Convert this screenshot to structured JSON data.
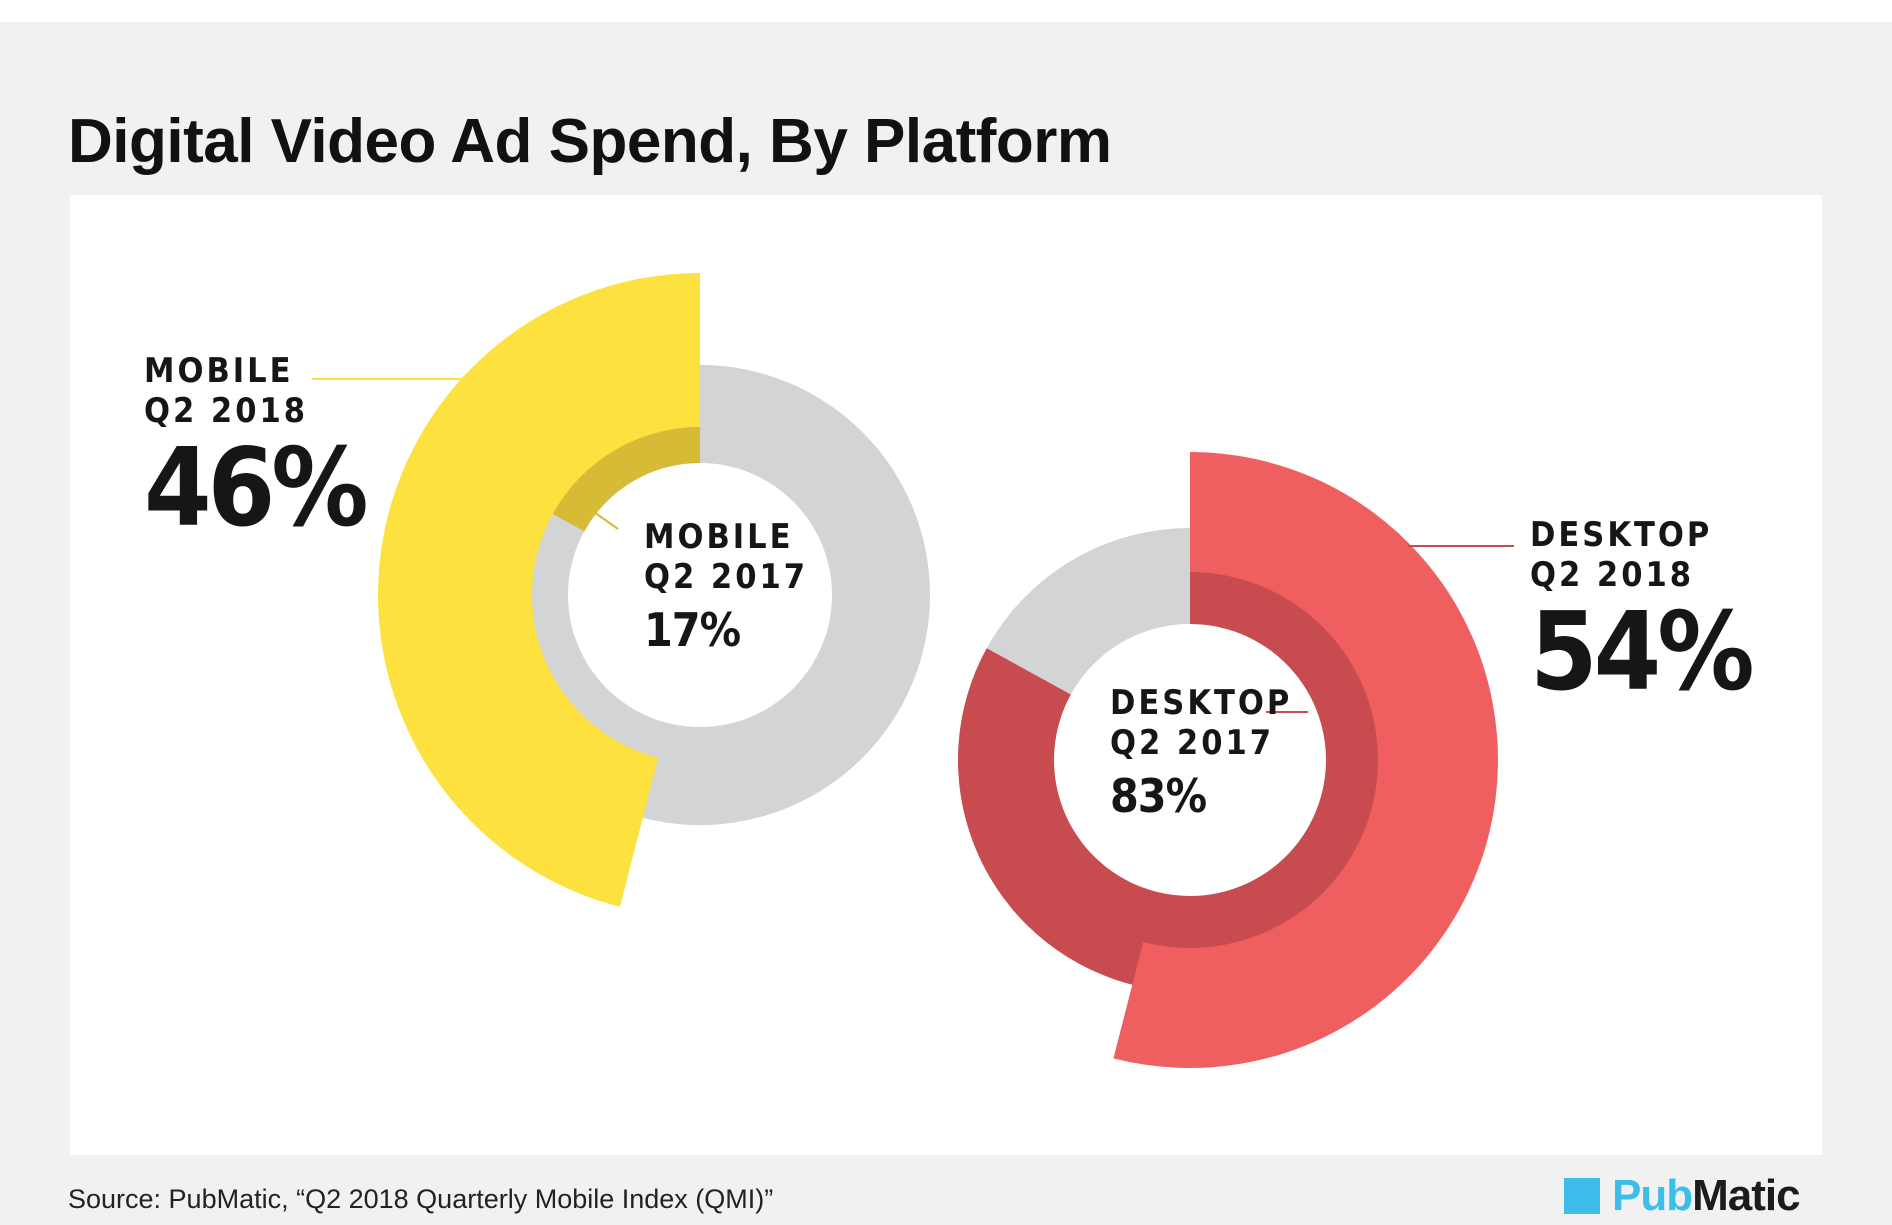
{
  "title": "Digital Video Ad Spend, By Platform",
  "source": "Source: PubMatic, “Q2 2018 Quarterly Mobile Index (QMI)”",
  "logo": {
    "part1": "Pub",
    "part2": "Matic"
  },
  "colors": {
    "mobile_2018": "#fde13f",
    "mobile_2017": "#d5bb36",
    "desktop_2018": "#f05f5f",
    "desktop_2017": "#c84c4f",
    "remainder": "#d3d4d6",
    "logo_accent": "#3dbde9"
  },
  "chart_data": [
    {
      "type": "pie",
      "title": "Mobile",
      "series": [
        {
          "category": "MOBILE",
          "period": "Q2 2018",
          "value": 46,
          "value_label": "46%"
        },
        {
          "category": "MOBILE",
          "period": "Q2 2017",
          "value": 17,
          "value_label": "17%"
        }
      ]
    },
    {
      "type": "pie",
      "title": "Desktop",
      "series": [
        {
          "category": "DESKTOP",
          "period": "Q2 2018",
          "value": 54,
          "value_label": "54%"
        },
        {
          "category": "DESKTOP",
          "period": "Q2 2017",
          "value": 83,
          "value_label": "83%"
        }
      ]
    }
  ]
}
